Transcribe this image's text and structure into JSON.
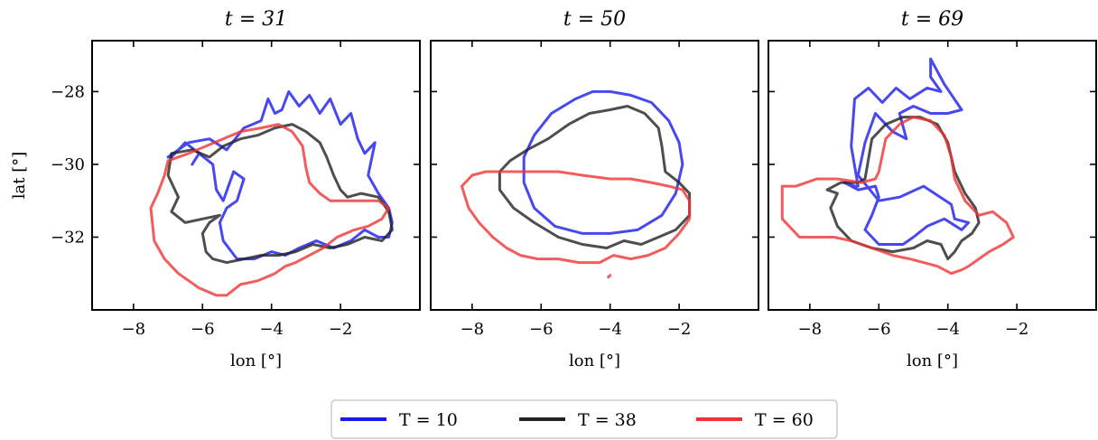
{
  "legend": {
    "items": [
      {
        "label": "T = 10",
        "color": "#1a1aee"
      },
      {
        "label": "T = 38",
        "color": "#222222"
      },
      {
        "label": "T = 60",
        "color": "#ee3333"
      }
    ]
  },
  "chart_data": [
    {
      "type": "line",
      "title": "t = 31",
      "xlabel": "lon [°]",
      "ylabel": "lat [°]",
      "xlim": [
        -9.2,
        0.3
      ],
      "ylim": [
        -34.0,
        -26.6
      ],
      "xticks": [
        -8,
        -6,
        -4,
        -2
      ],
      "xtick_labels": [
        "−8",
        "−6",
        "−4",
        "−2"
      ],
      "yticks": [
        -28,
        -30,
        -32
      ],
      "ytick_labels": [
        "−28",
        "−30",
        "−32"
      ],
      "grid": false,
      "series": [
        {
          "name": "T = 10",
          "color": "#1a1aee",
          "x": [
            -7.0,
            -6.4,
            -5.8,
            -5.3,
            -4.8,
            -4.3,
            -4.1,
            -3.9,
            -3.7,
            -3.5,
            -3.2,
            -2.9,
            -2.6,
            -2.3,
            -2.0,
            -1.7,
            -1.5,
            -1.3,
            -1.0,
            -1.2,
            -0.9,
            -0.6,
            -0.5,
            -0.6,
            -0.9,
            -1.3,
            -1.7,
            -2.2,
            -2.7,
            -3.2,
            -3.6,
            -4.0,
            -4.5,
            -5.0,
            -5.4,
            -5.5,
            -5.3,
            -5.0,
            -4.8,
            -5.1,
            -5.4,
            -5.6,
            -5.7,
            -6.1,
            -6.3,
            -6.1,
            -6.5,
            -6.9,
            -7.0
          ],
          "y": [
            -29.8,
            -29.4,
            -29.3,
            -29.6,
            -29.0,
            -28.8,
            -28.2,
            -28.6,
            -28.5,
            -28.0,
            -28.4,
            -28.1,
            -28.6,
            -28.2,
            -28.9,
            -28.6,
            -29.3,
            -29.7,
            -29.4,
            -30.3,
            -30.8,
            -31.2,
            -31.6,
            -32.0,
            -32.0,
            -31.8,
            -32.1,
            -32.3,
            -32.1,
            -32.3,
            -32.5,
            -32.4,
            -32.6,
            -32.6,
            -32.1,
            -31.6,
            -31.2,
            -31.0,
            -30.4,
            -30.2,
            -31.0,
            -30.7,
            -30.0,
            -29.7,
            -30.0,
            -29.7,
            -29.4,
            -29.8,
            -29.8
          ]
        },
        {
          "name": "T = 38",
          "color": "#222222",
          "x": [
            -6.9,
            -6.3,
            -5.8,
            -5.4,
            -4.9,
            -4.4,
            -3.9,
            -3.4,
            -3.0,
            -2.6,
            -2.4,
            -2.2,
            -2.0,
            -1.8,
            -1.4,
            -0.9,
            -0.6,
            -0.5,
            -0.8,
            -1.3,
            -1.8,
            -2.3,
            -2.8,
            -3.3,
            -3.8,
            -4.3,
            -4.8,
            -5.3,
            -5.7,
            -5.9,
            -6.0,
            -5.8,
            -5.5,
            -6.0,
            -6.5,
            -6.9,
            -6.7,
            -7.0,
            -6.9
          ],
          "y": [
            -29.7,
            -29.6,
            -29.8,
            -29.5,
            -29.3,
            -29.2,
            -29.0,
            -28.9,
            -29.1,
            -29.4,
            -29.8,
            -30.3,
            -30.7,
            -30.9,
            -30.8,
            -30.9,
            -31.3,
            -31.8,
            -32.1,
            -32.0,
            -32.2,
            -32.3,
            -32.2,
            -32.4,
            -32.5,
            -32.5,
            -32.6,
            -32.7,
            -32.6,
            -32.4,
            -31.9,
            -31.6,
            -31.4,
            -31.5,
            -31.6,
            -31.3,
            -30.9,
            -30.3,
            -29.7
          ]
        },
        {
          "name": "T = 60",
          "color": "#ee3333",
          "x": [
            -7.0,
            -6.4,
            -5.9,
            -5.4,
            -4.9,
            -4.3,
            -3.8,
            -3.4,
            -3.1,
            -3.0,
            -2.9,
            -2.6,
            -2.3,
            -1.9,
            -1.4,
            -0.9,
            -0.6,
            -0.8,
            -1.2,
            -1.6,
            -2.1,
            -2.5,
            -2.9,
            -3.3,
            -3.6,
            -3.9,
            -4.4,
            -4.9,
            -5.3,
            -5.6,
            -6.1,
            -6.7,
            -7.1,
            -7.4,
            -7.5,
            -7.3,
            -7.1,
            -7.0
          ],
          "y": [
            -29.9,
            -29.7,
            -29.5,
            -29.3,
            -29.1,
            -29.0,
            -28.9,
            -29.1,
            -29.5,
            -30.1,
            -30.5,
            -30.8,
            -31.0,
            -31.0,
            -31.0,
            -31.0,
            -31.2,
            -31.5,
            -31.7,
            -31.8,
            -32.0,
            -32.3,
            -32.5,
            -32.7,
            -32.8,
            -33.0,
            -33.2,
            -33.3,
            -33.6,
            -33.6,
            -33.4,
            -33.0,
            -32.6,
            -32.1,
            -31.2,
            -30.8,
            -30.3,
            -29.9
          ]
        }
      ]
    },
    {
      "type": "line",
      "title": "t = 50",
      "xlabel": "lon [°]",
      "ylabel": "",
      "xlim": [
        -9.2,
        0.3
      ],
      "ylim": [
        -34.0,
        -26.6
      ],
      "xticks": [
        -8,
        -6,
        -4,
        -2
      ],
      "xtick_labels": [
        "−8",
        "−6",
        "−4",
        "−2"
      ],
      "yticks": [
        -28,
        -30,
        -32
      ],
      "ytick_labels": [
        "",
        "",
        ""
      ],
      "grid": false,
      "series": [
        {
          "name": "T = 10",
          "color": "#1a1aee",
          "x": [
            -4.0,
            -3.4,
            -2.8,
            -2.3,
            -2.0,
            -1.9,
            -2.1,
            -2.5,
            -3.2,
            -4.0,
            -4.8,
            -5.6,
            -6.2,
            -6.5,
            -6.5,
            -6.2,
            -5.7,
            -5.0,
            -4.5,
            -4.0
          ],
          "y": [
            -28.0,
            -28.1,
            -28.3,
            -28.8,
            -29.4,
            -30.0,
            -30.8,
            -31.4,
            -31.8,
            -31.9,
            -31.9,
            -31.7,
            -31.2,
            -30.5,
            -29.8,
            -29.2,
            -28.6,
            -28.2,
            -28.0,
            -28.0
          ]
        },
        {
          "name": "T = 38",
          "color": "#222222",
          "x": [
            -4.0,
            -3.5,
            -3.0,
            -2.6,
            -2.5,
            -2.4,
            -2.0,
            -1.7,
            -1.7,
            -2.1,
            -2.6,
            -3.1,
            -3.6,
            -4.1,
            -4.8,
            -5.5,
            -6.2,
            -6.8,
            -7.2,
            -7.2,
            -6.9,
            -6.4,
            -5.8,
            -5.2,
            -4.6,
            -4.0
          ],
          "y": [
            -28.5,
            -28.4,
            -28.6,
            -29.0,
            -29.5,
            -30.2,
            -30.5,
            -30.8,
            -31.4,
            -31.8,
            -32.0,
            -32.2,
            -32.1,
            -32.3,
            -32.2,
            -32.0,
            -31.6,
            -31.2,
            -30.7,
            -30.2,
            -29.9,
            -29.6,
            -29.3,
            -28.9,
            -28.6,
            -28.5
          ]
        },
        {
          "name": "T = 60",
          "color": "#ee3333",
          "x": [
            -6.3,
            -5.5,
            -4.8,
            -4.0,
            -3.4,
            -2.8,
            -2.3,
            -1.9,
            -1.7,
            -1.7,
            -2.0,
            -2.4,
            -2.9,
            -3.4,
            -3.9,
            -4.3,
            -4.9,
            -5.5,
            -6.1,
            -6.6,
            -7.0,
            -7.4,
            -7.8,
            -8.1,
            -8.3,
            -8.0,
            -7.6,
            -7.0,
            -6.3
          ],
          "y": [
            -30.2,
            -30.2,
            -30.3,
            -30.4,
            -30.4,
            -30.5,
            -30.6,
            -30.7,
            -31.0,
            -31.5,
            -31.9,
            -32.3,
            -32.5,
            -32.6,
            -32.5,
            -32.7,
            -32.7,
            -32.6,
            -32.6,
            -32.5,
            -32.3,
            -32.0,
            -31.6,
            -31.2,
            -30.6,
            -30.3,
            -30.2,
            -30.2,
            -30.2
          ]
        },
        {
          "name": "",
          "color": "#ee3333",
          "x": [
            -4.0,
            -4.05
          ],
          "y": [
            -33.05,
            -33.1
          ]
        }
      ]
    },
    {
      "type": "line",
      "title": "t = 69",
      "xlabel": "lon [°]",
      "ylabel": "",
      "xlim": [
        -9.2,
        0.3
      ],
      "ylim": [
        -34.0,
        -26.6
      ],
      "xticks": [
        -8,
        -6,
        -4,
        -2
      ],
      "xtick_labels": [
        "−8",
        "−6",
        "−4",
        "−2"
      ],
      "yticks": [
        -28,
        -30,
        -32
      ],
      "ytick_labels": [
        "",
        "",
        ""
      ],
      "grid": false,
      "series": [
        {
          "name": "T = 10",
          "color": "#1a1aee",
          "x": [
            -6.6,
            -6.8,
            -6.7,
            -6.3,
            -5.9,
            -5.5,
            -5.1,
            -4.6,
            -4.2,
            -4.5,
            -4.5,
            -4.1,
            -3.6,
            -4.0,
            -4.5,
            -5.0,
            -5.4,
            -5.2,
            -5.6,
            -6.1,
            -6.4,
            -6.6,
            -6.0,
            -5.4,
            -4.7,
            -3.9,
            -3.8,
            -3.4,
            -3.6,
            -4.1,
            -4.6,
            -5.0,
            -5.3,
            -6.0,
            -6.4,
            -6.2,
            -6.0,
            -6.1,
            -6.6,
            -7.0,
            -6.7,
            -6.6
          ],
          "y": [
            -30.6,
            -29.5,
            -28.2,
            -27.9,
            -28.3,
            -27.9,
            -28.2,
            -27.9,
            -28.0,
            -27.6,
            -27.1,
            -27.8,
            -28.5,
            -28.6,
            -28.6,
            -28.4,
            -28.6,
            -29.3,
            -29.1,
            -28.6,
            -29.4,
            -30.3,
            -31.0,
            -30.9,
            -30.6,
            -31.1,
            -31.5,
            -31.6,
            -31.8,
            -31.5,
            -31.7,
            -32.0,
            -32.2,
            -32.2,
            -31.8,
            -31.4,
            -30.9,
            -30.6,
            -30.7,
            -30.5,
            -30.6,
            -30.6
          ]
        },
        {
          "name": "T = 38",
          "color": "#222222",
          "x": [
            -6.4,
            -6.2,
            -5.8,
            -5.3,
            -4.8,
            -4.3,
            -4.0,
            -3.8,
            -3.5,
            -3.2,
            -3.1,
            -3.3,
            -3.6,
            -3.8,
            -4.0,
            -4.2,
            -4.6,
            -5.0,
            -5.6,
            -6.2,
            -6.8,
            -7.2,
            -7.4,
            -7.2,
            -7.5,
            -7.1,
            -6.6,
            -6.4
          ],
          "y": [
            -30.4,
            -29.3,
            -28.9,
            -28.7,
            -28.7,
            -28.9,
            -29.4,
            -30.2,
            -30.8,
            -31.2,
            -31.6,
            -31.9,
            -32.1,
            -32.4,
            -32.6,
            -32.2,
            -32.1,
            -32.3,
            -32.4,
            -32.3,
            -32.1,
            -31.7,
            -31.2,
            -30.8,
            -30.7,
            -30.5,
            -30.5,
            -30.4
          ]
        },
        {
          "name": "T = 60",
          "color": "#ee3333",
          "x": [
            -6.0,
            -5.8,
            -5.4,
            -5.0,
            -4.5,
            -4.1,
            -3.9,
            -3.8,
            -3.5,
            -3.1,
            -2.7,
            -2.3,
            -2.1,
            -2.4,
            -2.8,
            -3.1,
            -3.4,
            -3.6,
            -3.9,
            -4.3,
            -4.7,
            -5.1,
            -5.6,
            -6.2,
            -6.8,
            -7.3,
            -7.8,
            -8.3,
            -8.8,
            -8.8,
            -8.4,
            -7.8,
            -7.2,
            -6.5,
            -6.1,
            -6.0
          ],
          "y": [
            -30.2,
            -29.3,
            -28.9,
            -28.7,
            -28.8,
            -29.2,
            -29.8,
            -30.4,
            -31.0,
            -31.4,
            -31.3,
            -31.6,
            -32.0,
            -32.2,
            -32.4,
            -32.6,
            -32.8,
            -32.9,
            -33.0,
            -32.8,
            -32.7,
            -32.6,
            -32.5,
            -32.3,
            -32.1,
            -32.0,
            -32.0,
            -32.0,
            -31.5,
            -30.6,
            -30.6,
            -30.4,
            -30.4,
            -30.5,
            -30.4,
            -30.2
          ]
        }
      ]
    }
  ]
}
